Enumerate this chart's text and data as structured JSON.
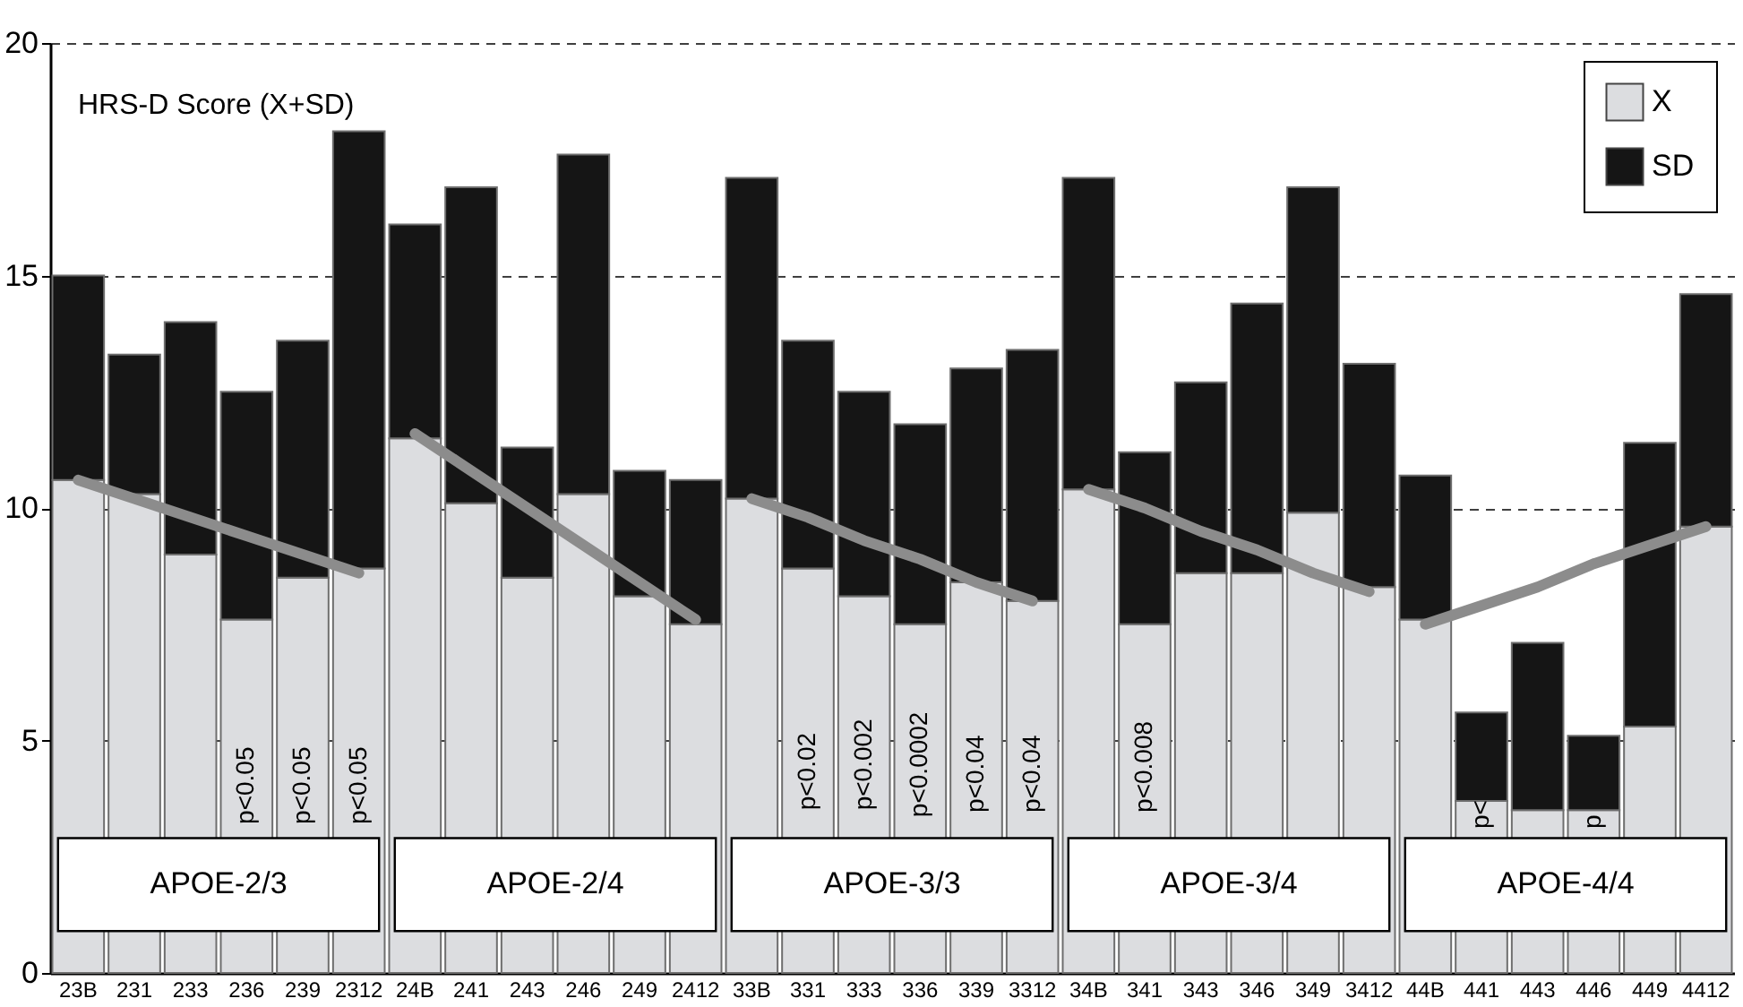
{
  "chart_data": {
    "type": "bar",
    "stacked": true,
    "ylabel": "HRS-D Score (X+SD)",
    "categories": [
      "23B",
      "231",
      "233",
      "236",
      "239",
      "2312",
      "24B",
      "241",
      "243",
      "246",
      "249",
      "2412",
      "33B",
      "331",
      "333",
      "336",
      "339",
      "3312",
      "34B",
      "341",
      "343",
      "346",
      "349",
      "3412",
      "44B",
      "441",
      "443",
      "446",
      "449",
      "4412"
    ],
    "series": [
      {
        "name": "X",
        "color": "#dcdde0",
        "values": [
          10.6,
          10.3,
          9.0,
          7.6,
          8.5,
          8.7,
          11.5,
          10.1,
          8.5,
          10.3,
          8.1,
          7.5,
          10.2,
          8.7,
          8.1,
          7.5,
          8.4,
          8.0,
          10.4,
          7.5,
          8.6,
          8.6,
          9.9,
          8.3,
          7.6,
          3.7,
          3.5,
          3.5,
          5.3,
          9.6
        ]
      },
      {
        "name": "SD",
        "color": "#151515",
        "values": [
          4.4,
          3.0,
          5.0,
          4.9,
          5.1,
          9.4,
          4.6,
          6.8,
          2.8,
          7.3,
          2.7,
          3.1,
          6.9,
          4.9,
          4.4,
          4.3,
          4.6,
          5.4,
          6.7,
          3.7,
          4.1,
          5.8,
          7.0,
          4.8,
          3.1,
          1.9,
          3.6,
          1.6,
          6.1,
          5.0
        ]
      },
      {
        "type": "line",
        "color": "#8c8c8c",
        "values": [
          10.6,
          10.2,
          9.8,
          9.4,
          9.0,
          8.6,
          null,
          null,
          null,
          null,
          null,
          null,
          null,
          null,
          null,
          null,
          null,
          null,
          null,
          null,
          null,
          null,
          null,
          null,
          null,
          null,
          null,
          null,
          null,
          null
        ]
      },
      {
        "type": "line",
        "color": "#8c8c8c",
        "values": [
          null,
          null,
          null,
          null,
          null,
          null,
          11.6,
          10.8,
          10.0,
          9.2,
          8.4,
          7.6,
          null,
          null,
          null,
          null,
          null,
          null,
          null,
          null,
          null,
          null,
          null,
          null,
          null,
          null,
          null,
          null,
          null,
          null
        ]
      },
      {
        "type": "line",
        "color": "#8c8c8c",
        "values": [
          null,
          null,
          null,
          null,
          null,
          null,
          null,
          null,
          null,
          null,
          null,
          null,
          10.2,
          9.8,
          9.3,
          8.9,
          8.4,
          8.0,
          null,
          null,
          null,
          null,
          null,
          null,
          null,
          null,
          null,
          null,
          null,
          null
        ]
      },
      {
        "type": "line",
        "color": "#8c8c8c",
        "values": [
          null,
          null,
          null,
          null,
          null,
          null,
          null,
          null,
          null,
          null,
          null,
          null,
          null,
          null,
          null,
          null,
          null,
          null,
          10.4,
          10.0,
          9.5,
          9.1,
          8.6,
          8.2,
          null,
          null,
          null,
          null,
          null,
          null
        ]
      },
      {
        "type": "line",
        "color": "#8c8c8c",
        "values": [
          null,
          null,
          null,
          null,
          null,
          null,
          null,
          null,
          null,
          null,
          null,
          null,
          null,
          null,
          null,
          null,
          null,
          null,
          null,
          null,
          null,
          null,
          null,
          null,
          7.5,
          7.9,
          8.3,
          8.8,
          9.2,
          9.6
        ]
      }
    ],
    "ylim": [
      0,
      20
    ],
    "yticks": [
      0,
      5,
      10,
      15,
      20
    ],
    "grid": "y",
    "legend": "top right",
    "annotations": [
      "p<0.05",
      "p<0.05",
      "p<0.05",
      "p<0.02",
      "p<0.002",
      "p<0.0002",
      "p<0.04",
      "p<0.04",
      "p<0.008",
      "p<",
      "p",
      "APOE-2/3",
      "APOE-2/4",
      "APOE-3/3",
      "APOE-3/4",
      "APOE-4/4"
    ]
  }
}
